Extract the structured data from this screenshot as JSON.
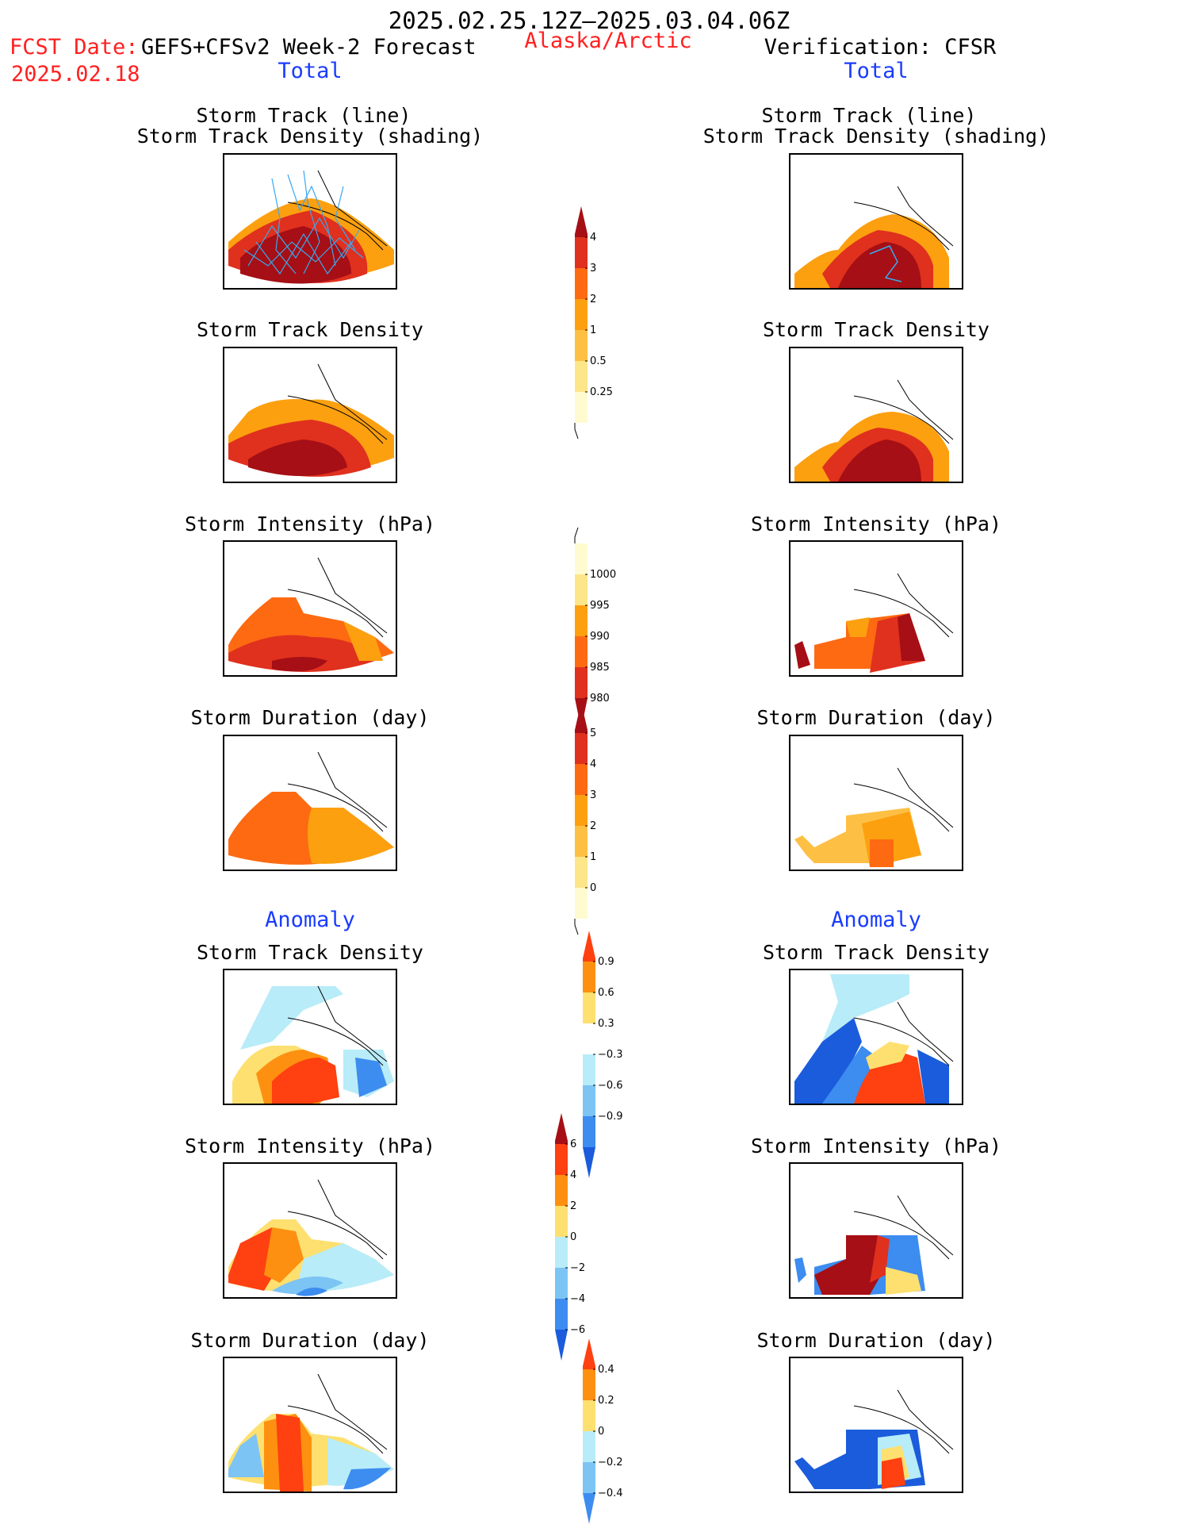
{
  "header": {
    "date_range": "2025.02.25.12Z–2025.03.04.06Z",
    "fcst_label": "FCST Date:",
    "fcst_product": "GEFS+CFSv2 Week-2 Forecast",
    "fcst_date": "2025.02.18",
    "region": "Alaska/Arctic",
    "verification": "Verification: CFSR"
  },
  "columns": {
    "left": {
      "total_label": "Total",
      "anomaly_label": "Anomaly"
    },
    "right": {
      "total_label": "Total",
      "anomaly_label": "Anomaly"
    }
  },
  "panels": {
    "left": {
      "track": {
        "line1": "Storm Track (line)",
        "line2": "Storm Track Density (shading)"
      },
      "density": "Storm Track Density",
      "intensity": "Storm Intensity (hPa)",
      "duration": "Storm Duration (day)",
      "anom_density": "Storm Track Density",
      "anom_intensity": "Storm Intensity (hPa)",
      "anom_duration": "Storm Duration (day)"
    },
    "right": {
      "track": {
        "line1": "Storm Track (line)",
        "line2": "Storm Track Density (shading)"
      },
      "density": "Storm Track Density",
      "intensity": "Storm Intensity (hPa)",
      "duration": "Storm Duration (day)",
      "anom_density": "Storm Track Density",
      "anom_intensity": "Storm Intensity (hPa)",
      "anom_duration": "Storm Duration (day)"
    }
  },
  "colorbars": {
    "density": {
      "labels": [
        "4",
        "3",
        "2",
        "1",
        "0.5",
        "0.25"
      ],
      "colors": [
        "#a50f15",
        "#e0301e",
        "#fd6a12",
        "#fca010",
        "#fdc045",
        "#fde58a",
        "#fffbd0"
      ]
    },
    "intensity": {
      "labels": [
        "1000",
        "995",
        "990",
        "985",
        "980"
      ],
      "colors": [
        "#fffbd0",
        "#fde58a",
        "#fca010",
        "#fd6a12",
        "#e0301e",
        "#a50f15"
      ]
    },
    "duration": {
      "labels": [
        "5",
        "4",
        "3",
        "2",
        "1",
        "0"
      ],
      "colors": [
        "#a50f15",
        "#e0301e",
        "#fd6a12",
        "#fca010",
        "#fdc045",
        "#fde58a",
        "#fffbd0"
      ]
    },
    "anom_density": {
      "labels": [
        "0.9",
        "0.6",
        "0.3",
        "−0.3",
        "−0.6",
        "−0.9"
      ],
      "colors": [
        "#ff4010",
        "#fd9010",
        "#fde070",
        "#ffffff",
        "#b8ecf8",
        "#7cc4f4",
        "#3d8cf0",
        "#1a5cdc"
      ]
    },
    "anom_intensity": {
      "labels": [
        "6",
        "4",
        "2",
        "0",
        "−2",
        "−4",
        "−6"
      ],
      "colors": [
        "#a50f15",
        "#ff4010",
        "#fd9010",
        "#fde070",
        "#b8ecf8",
        "#7cc4f4",
        "#3d8cf0",
        "#1a5cdc"
      ]
    },
    "anom_duration": {
      "labels": [
        "0.4",
        "0.2",
        "0",
        "−0.2",
        "−0.4"
      ],
      "colors": [
        "#ff4010",
        "#fd9010",
        "#fde070",
        "#b8ecf8",
        "#7cc4f4",
        "#3d8cf0"
      ]
    }
  }
}
